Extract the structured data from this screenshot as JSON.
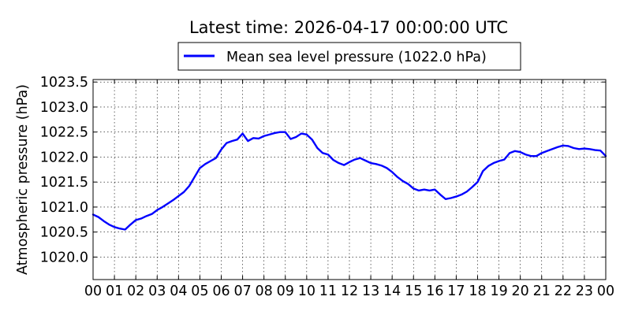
{
  "chart_data": {
    "type": "line",
    "title": "Latest time: 2026-04-17 00:00:00 UTC",
    "xlabel": "",
    "ylabel": "Atmospheric pressure (hPa)",
    "xlim": [
      0,
      24
    ],
    "ylim": [
      1019.55,
      1023.55
    ],
    "x_ticks": [
      "00",
      "01",
      "02",
      "03",
      "04",
      "05",
      "06",
      "07",
      "08",
      "09",
      "10",
      "11",
      "12",
      "13",
      "14",
      "15",
      "16",
      "17",
      "18",
      "19",
      "20",
      "21",
      "22",
      "23",
      "00"
    ],
    "y_ticks": [
      "1020.0",
      "1020.5",
      "1021.0",
      "1021.5",
      "1022.0",
      "1022.5",
      "1023.0",
      "1023.5"
    ],
    "grid": true,
    "legend_position": "top-center",
    "series": [
      {
        "name": "Mean sea level pressure (1022.0 hPa)",
        "color": "#0000ff",
        "x": [
          0,
          0.25,
          0.5,
          0.75,
          1.0,
          1.25,
          1.5,
          1.75,
          2.0,
          2.25,
          2.5,
          2.75,
          3.0,
          3.25,
          3.5,
          3.75,
          4.0,
          4.25,
          4.5,
          4.75,
          5.0,
          5.25,
          5.5,
          5.75,
          6.0,
          6.25,
          6.5,
          6.75,
          7.0,
          7.25,
          7.5,
          7.75,
          8.0,
          8.25,
          8.5,
          8.75,
          9.0,
          9.25,
          9.5,
          9.75,
          10.0,
          10.25,
          10.5,
          10.75,
          11.0,
          11.25,
          11.5,
          11.75,
          12.0,
          12.25,
          12.5,
          12.75,
          13.0,
          13.25,
          13.5,
          13.75,
          14.0,
          14.25,
          14.5,
          14.75,
          15.0,
          15.25,
          15.5,
          15.75,
          16.0,
          16.25,
          16.5,
          16.75,
          17.0,
          17.25,
          17.5,
          17.75,
          18.0,
          18.25,
          18.5,
          18.75,
          19.0,
          19.25,
          19.5,
          19.75,
          20.0,
          20.25,
          20.5,
          20.75,
          21.0,
          21.25,
          21.5,
          21.75,
          22.0,
          22.25,
          22.5,
          22.75,
          23.0,
          23.25,
          23.5,
          23.75,
          24.0
        ],
        "y": [
          1020.85,
          1020.8,
          1020.72,
          1020.65,
          1020.6,
          1020.57,
          1020.55,
          1020.65,
          1020.74,
          1020.77,
          1020.82,
          1020.86,
          1020.94,
          1021.0,
          1021.07,
          1021.14,
          1021.22,
          1021.3,
          1021.42,
          1021.6,
          1021.78,
          1021.86,
          1021.92,
          1021.98,
          1022.15,
          1022.28,
          1022.32,
          1022.35,
          1022.47,
          1022.32,
          1022.38,
          1022.37,
          1022.42,
          1022.45,
          1022.48,
          1022.5,
          1022.5,
          1022.36,
          1022.4,
          1022.47,
          1022.45,
          1022.35,
          1022.18,
          1022.08,
          1022.05,
          1021.94,
          1021.88,
          1021.84,
          1021.9,
          1021.95,
          1021.98,
          1021.93,
          1021.88,
          1021.86,
          1021.83,
          1021.78,
          1021.7,
          1021.6,
          1021.52,
          1021.46,
          1021.37,
          1021.33,
          1021.35,
          1021.33,
          1021.35,
          1021.25,
          1021.16,
          1021.18,
          1021.21,
          1021.25,
          1021.31,
          1021.4,
          1021.5,
          1021.72,
          1021.82,
          1021.88,
          1021.92,
          1021.95,
          1022.08,
          1022.12,
          1022.1,
          1022.05,
          1022.02,
          1022.02,
          1022.08,
          1022.12,
          1022.16,
          1022.2,
          1022.23,
          1022.22,
          1022.18,
          1022.16,
          1022.17,
          1022.16,
          1022.14,
          1022.13,
          1022.02
        ]
      }
    ]
  }
}
